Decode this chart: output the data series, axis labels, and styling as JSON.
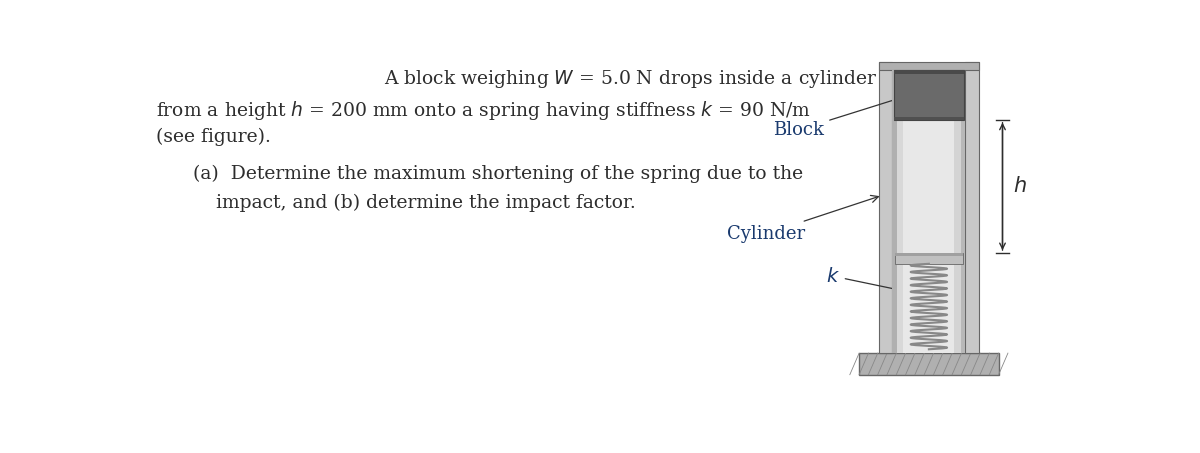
{
  "bg_color": "#ffffff",
  "text_color": "#2d2d2d",
  "label_color": "#1a3a6e",
  "fig_width": 12.0,
  "fig_height": 4.53,
  "label_block": "Block",
  "label_cylinder": "Cylinder",
  "label_k": "$k$",
  "label_h": "$h$",
  "wall_color": "#c8c8c8",
  "wall_edge": "#666666",
  "inner_light": "#e0e0e0",
  "inner_mid": "#c0c0c0",
  "inner_dark": "#a8a8a8",
  "block_color": "#787878",
  "block_edge": "#444444",
  "spring_color": "#999999",
  "ground_color": "#b0b0b0",
  "ground_edge": "#666666"
}
